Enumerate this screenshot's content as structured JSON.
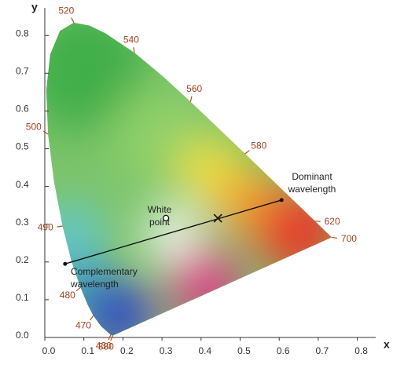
{
  "chart_data": {
    "type": "chromaticity",
    "x_label": "x",
    "y_label": "y",
    "xlim": [
      0,
      0.84
    ],
    "ylim": [
      0,
      0.87
    ],
    "xticks": [
      {
        "value": 0,
        "label": "0.0"
      },
      0.1,
      0.2,
      0.3,
      0.4,
      0.5,
      0.6,
      0.7,
      0.8
    ],
    "yticks": [
      {
        "value": 0,
        "label": "0.0"
      },
      0.1,
      0.2,
      0.3,
      0.4,
      0.5,
      0.6,
      0.7,
      0.8
    ],
    "locus": {
      "x": [
        0.1741,
        0.1689,
        0.144,
        0.1241,
        0.1096,
        0.0913,
        0.0687,
        0.0454,
        0.0235,
        0.0082,
        0.0039,
        0.0139,
        0.0389,
        0.0743,
        0.1142,
        0.1547,
        0.2296,
        0.3016,
        0.3731,
        0.4441,
        0.5125,
        0.5752,
        0.627,
        0.6658,
        0.6915,
        0.719,
        0.7347
      ],
      "y": [
        0.005,
        0.0069,
        0.0297,
        0.0578,
        0.0868,
        0.1327,
        0.2007,
        0.295,
        0.4127,
        0.5384,
        0.6548,
        0.7502,
        0.812,
        0.8338,
        0.8262,
        0.8059,
        0.7543,
        0.6923,
        0.6245,
        0.5547,
        0.4866,
        0.4242,
        0.3725,
        0.334,
        0.3083,
        0.2809,
        0.2653
      ]
    },
    "wavelength_labels": [
      {
        "value": 380,
        "x": 0.1741,
        "y": 0.005
      },
      {
        "value": 430,
        "x": 0.1689,
        "y": 0.0069
      },
      {
        "value": 470,
        "x": 0.1241,
        "y": 0.0578
      },
      {
        "value": 480,
        "x": 0.0913,
        "y": 0.1327
      },
      {
        "value": 490,
        "x": 0.0454,
        "y": 0.295
      },
      {
        "value": 500,
        "x": 0.0082,
        "y": 0.5384
      },
      {
        "value": 520,
        "x": 0.0743,
        "y": 0.8338
      },
      {
        "value": 540,
        "x": 0.2296,
        "y": 0.7543
      },
      {
        "value": 560,
        "x": 0.3731,
        "y": 0.6245
      },
      {
        "value": 580,
        "x": 0.5125,
        "y": 0.4866
      },
      {
        "value": 620,
        "x": 0.6915,
        "y": 0.3083
      },
      {
        "value": 700,
        "x": 0.7347,
        "y": 0.2653
      }
    ],
    "white_point": {
      "x": 0.3101,
      "y": 0.3162,
      "lines": [
        "White",
        "point"
      ]
    },
    "cross_point": {
      "x": 0.443,
      "y": 0.316
    },
    "dominant_point": {
      "x": 0.606,
      "y": 0.364,
      "lines": [
        "Dominant",
        "wavelength"
      ]
    },
    "complementary_point": {
      "x": 0.052,
      "y": 0.195,
      "lines": [
        "Complementary",
        "wavelength"
      ]
    }
  }
}
